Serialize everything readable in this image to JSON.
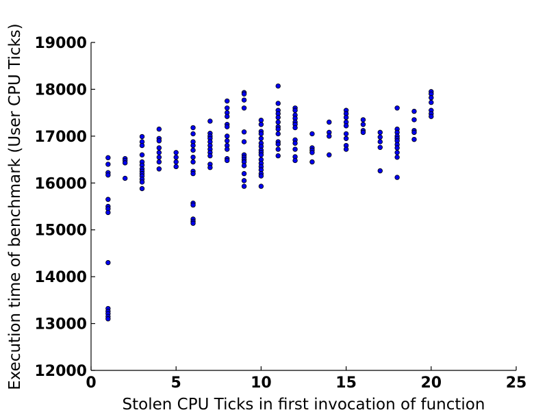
{
  "chart_data": {
    "type": "scatter",
    "title": "",
    "xlabel": "Stolen CPU Ticks in first invocation of function",
    "ylabel": "Execution time of benchmark (User CPU Ticks)",
    "xlim": [
      0,
      25
    ],
    "ylim": [
      12000,
      19000
    ],
    "xticks": [
      0,
      5,
      10,
      15,
      20,
      25
    ],
    "yticks": [
      12000,
      13000,
      14000,
      15000,
      16000,
      17000,
      18000,
      19000
    ],
    "grid": false,
    "marker_color": "#0000ee",
    "points": [
      [
        1,
        16540
      ],
      [
        1,
        16400
      ],
      [
        1,
        16220
      ],
      [
        1,
        16170
      ],
      [
        1,
        15650
      ],
      [
        1,
        15500
      ],
      [
        1,
        15450
      ],
      [
        1,
        15370
      ],
      [
        1,
        14300
      ],
      [
        1,
        13320
      ],
      [
        1,
        13260
      ],
      [
        1,
        13210
      ],
      [
        1,
        13150
      ],
      [
        1,
        13100
      ],
      [
        2,
        16520
      ],
      [
        2,
        16480
      ],
      [
        2,
        16430
      ],
      [
        2,
        16100
      ],
      [
        3,
        16990
      ],
      [
        3,
        16880
      ],
      [
        3,
        16800
      ],
      [
        3,
        16600
      ],
      [
        3,
        16450
      ],
      [
        3,
        16380
      ],
      [
        3,
        16300
      ],
      [
        3,
        16250
      ],
      [
        3,
        16200
      ],
      [
        3,
        16150
      ],
      [
        3,
        16080
      ],
      [
        3,
        16020
      ],
      [
        3,
        15880
      ],
      [
        4,
        17150
      ],
      [
        4,
        16950
      ],
      [
        4,
        16900
      ],
      [
        4,
        16750
      ],
      [
        4,
        16650
      ],
      [
        4,
        16550
      ],
      [
        4,
        16450
      ],
      [
        4,
        16300
      ],
      [
        5,
        16650
      ],
      [
        5,
        16550
      ],
      [
        5,
        16450
      ],
      [
        5,
        16350
      ],
      [
        6,
        17180
      ],
      [
        6,
        17050
      ],
      [
        6,
        16880
      ],
      [
        6,
        16800
      ],
      [
        6,
        16700
      ],
      [
        6,
        16550
      ],
      [
        6,
        16450
      ],
      [
        6,
        16250
      ],
      [
        6,
        16200
      ],
      [
        6,
        15570
      ],
      [
        6,
        15530
      ],
      [
        6,
        15230
      ],
      [
        6,
        15180
      ],
      [
        6,
        15140
      ],
      [
        7,
        17320
      ],
      [
        7,
        17060
      ],
      [
        7,
        17000
      ],
      [
        7,
        16950
      ],
      [
        7,
        16880
      ],
      [
        7,
        16800
      ],
      [
        7,
        16720
      ],
      [
        7,
        16650
      ],
      [
        7,
        16580
      ],
      [
        7,
        16400
      ],
      [
        7,
        16330
      ],
      [
        8,
        17750
      ],
      [
        8,
        17600
      ],
      [
        8,
        17500
      ],
      [
        8,
        17420
      ],
      [
        8,
        17250
      ],
      [
        8,
        17200
      ],
      [
        8,
        17000
      ],
      [
        8,
        16900
      ],
      [
        8,
        16800
      ],
      [
        8,
        16720
      ],
      [
        8,
        16520
      ],
      [
        8,
        16480
      ],
      [
        9,
        17930
      ],
      [
        9,
        17900
      ],
      [
        9,
        17770
      ],
      [
        9,
        17600
      ],
      [
        9,
        17090
      ],
      [
        9,
        16880
      ],
      [
        9,
        16600
      ],
      [
        9,
        16550
      ],
      [
        9,
        16500
      ],
      [
        9,
        16450
      ],
      [
        9,
        16370
      ],
      [
        9,
        16200
      ],
      [
        9,
        16050
      ],
      [
        9,
        15930
      ],
      [
        10,
        17340
      ],
      [
        10,
        17250
      ],
      [
        10,
        17100
      ],
      [
        10,
        17050
      ],
      [
        10,
        16950
      ],
      [
        10,
        16850
      ],
      [
        10,
        16780
      ],
      [
        10,
        16700
      ],
      [
        10,
        16650
      ],
      [
        10,
        16600
      ],
      [
        10,
        16500
      ],
      [
        10,
        16420
      ],
      [
        10,
        16350
      ],
      [
        10,
        16280
      ],
      [
        10,
        16200
      ],
      [
        10,
        16150
      ],
      [
        10,
        15930
      ],
      [
        11,
        18070
      ],
      [
        11,
        17700
      ],
      [
        11,
        17550
      ],
      [
        11,
        17480
      ],
      [
        11,
        17400
      ],
      [
        11,
        17300
      ],
      [
        11,
        17200
      ],
      [
        11,
        17150
      ],
      [
        11,
        17050
      ],
      [
        11,
        16880
      ],
      [
        11,
        16830
      ],
      [
        11,
        16720
      ],
      [
        11,
        16580
      ],
      [
        12,
        17600
      ],
      [
        12,
        17550
      ],
      [
        12,
        17450
      ],
      [
        12,
        17380
      ],
      [
        12,
        17300
      ],
      [
        12,
        17250
      ],
      [
        12,
        17180
      ],
      [
        12,
        16920
      ],
      [
        12,
        16850
      ],
      [
        12,
        16720
      ],
      [
        12,
        16560
      ],
      [
        12,
        16480
      ],
      [
        13,
        17050
      ],
      [
        13,
        16750
      ],
      [
        13,
        16700
      ],
      [
        13,
        16650
      ],
      [
        13,
        16450
      ],
      [
        14,
        17300
      ],
      [
        14,
        17080
      ],
      [
        14,
        17000
      ],
      [
        14,
        16600
      ],
      [
        15,
        17550
      ],
      [
        15,
        17480
      ],
      [
        15,
        17400
      ],
      [
        15,
        17300
      ],
      [
        15,
        17220
      ],
      [
        15,
        17050
      ],
      [
        15,
        16950
      ],
      [
        15,
        16800
      ],
      [
        15,
        16720
      ],
      [
        16,
        17350
      ],
      [
        16,
        17250
      ],
      [
        16,
        17120
      ],
      [
        16,
        17080
      ],
      [
        17,
        17080
      ],
      [
        17,
        16980
      ],
      [
        17,
        16880
      ],
      [
        17,
        16760
      ],
      [
        17,
        16260
      ],
      [
        18,
        17600
      ],
      [
        18,
        17150
      ],
      [
        18,
        17080
      ],
      [
        18,
        17000
      ],
      [
        18,
        16950
      ],
      [
        18,
        16900
      ],
      [
        18,
        16820
      ],
      [
        18,
        16750
      ],
      [
        18,
        16650
      ],
      [
        18,
        16550
      ],
      [
        18,
        16120
      ],
      [
        19,
        17530
      ],
      [
        19,
        17350
      ],
      [
        19,
        17120
      ],
      [
        19,
        17080
      ],
      [
        19,
        16930
      ],
      [
        20,
        17950
      ],
      [
        20,
        17900
      ],
      [
        20,
        17820
      ],
      [
        20,
        17720
      ],
      [
        20,
        17550
      ],
      [
        20,
        17480
      ],
      [
        20,
        17420
      ]
    ]
  }
}
